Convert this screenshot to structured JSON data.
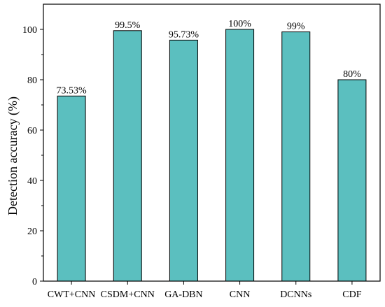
{
  "chart_data": {
    "type": "bar",
    "title": "",
    "xlabel": "",
    "ylabel": "Detection accuracy (%)",
    "categories": [
      "CWT+CNN",
      "CSDM+CNN",
      "GA-DBN",
      "CNN",
      "DCNNs",
      "CDF"
    ],
    "values": [
      73.53,
      99.5,
      95.73,
      100,
      99,
      80
    ],
    "data_labels": [
      "73.53%",
      "99.5%",
      "95.73%",
      "100%",
      "99%",
      "80%"
    ],
    "ylim": [
      0,
      110
    ],
    "yticks": [
      0,
      20,
      40,
      60,
      80,
      100
    ],
    "grid": false,
    "legend": "none",
    "bar_color": "#5bbfbf",
    "bar_edge_color": "#000000"
  }
}
